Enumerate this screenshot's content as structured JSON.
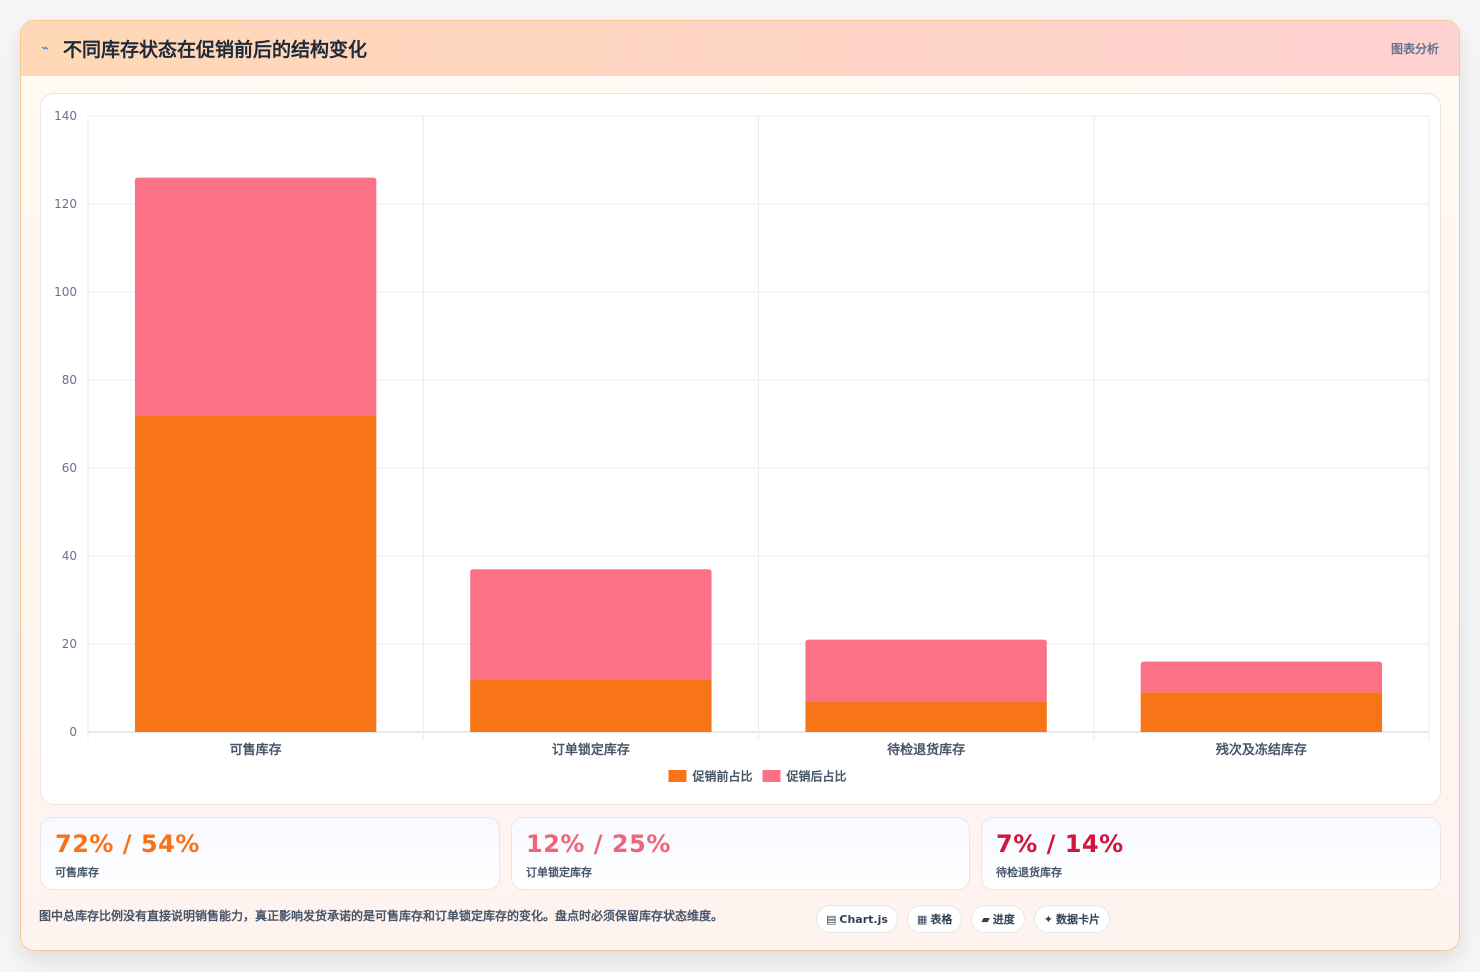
{
  "header": {
    "icon": "⌁",
    "title": "不同库存状态在促销前后的结构变化",
    "tag": "图表分析"
  },
  "chart_data": {
    "type": "bar",
    "stacked": true,
    "categories": [
      "可售库存",
      "订单锁定库存",
      "待检退货库存",
      "残次及冻结库存"
    ],
    "series": [
      {
        "name": "促销前占比",
        "values": [
          72,
          12,
          7,
          9
        ],
        "color": "#f77417"
      },
      {
        "name": "促销后占比",
        "values": [
          54,
          25,
          14,
          7
        ],
        "color": "#fb7185"
      }
    ],
    "ylim": [
      0,
      140
    ],
    "yticks": [
      0,
      20,
      40,
      60,
      80,
      100,
      120,
      140
    ],
    "grid": true,
    "legend": "bottom"
  },
  "stats": [
    {
      "value": "72% / 54%",
      "label": "可售库存",
      "color": "#f97316"
    },
    {
      "value": "12% / 25%",
      "label": "订单锁定库存",
      "color": "#f0657b"
    },
    {
      "value": "7% / 14%",
      "label": "待检退货库存",
      "color": "#d0153f"
    }
  ],
  "footer": {
    "note": "图中总库存比例没有直接说明销售能力，真正影响发货承诺的是可售库存和订单锁定库存的变化。盘点时必须保留库存状态维度。",
    "chips": [
      {
        "icon": "▤",
        "label": "Chart.js"
      },
      {
        "icon": "▦",
        "label": "表格"
      },
      {
        "icon": "▰",
        "label": "进度"
      },
      {
        "icon": "✦",
        "label": "数据卡片"
      }
    ]
  }
}
